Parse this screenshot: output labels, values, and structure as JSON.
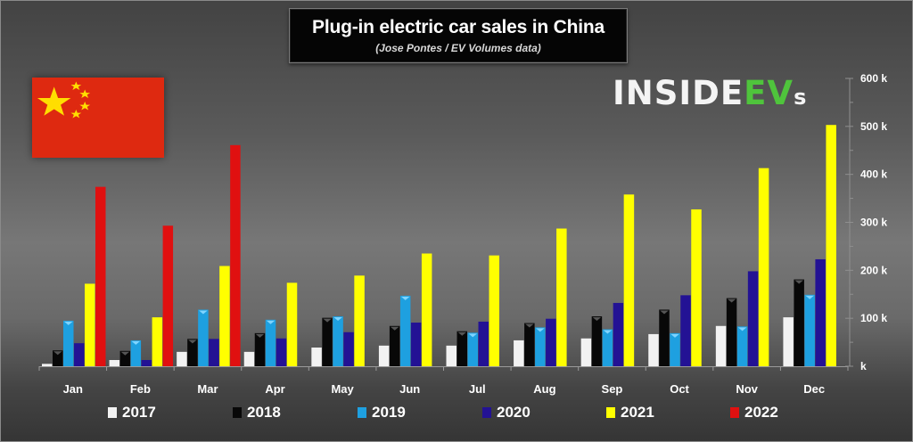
{
  "chart_data": {
    "type": "bar",
    "title": "Plug-in electric car sales in China",
    "subtitle": "(Jose Pontes / EV Volumes data)",
    "xlabel": "",
    "ylabel": "",
    "ylim": [
      0,
      600000
    ],
    "y_ticks": [
      0,
      100000,
      200000,
      300000,
      400000,
      500000,
      600000
    ],
    "y_tick_labels": [
      "k",
      "100 k",
      "200 k",
      "300 k",
      "400 k",
      "500 k",
      "600 k"
    ],
    "y_axis_position": "right",
    "grid": false,
    "legend_position": "bottom",
    "categories": [
      "Jan",
      "Feb",
      "Mar",
      "Apr",
      "May",
      "Jun",
      "Jul",
      "Aug",
      "Sep",
      "Oct",
      "Nov",
      "Dec"
    ],
    "series": [
      {
        "name": "2017",
        "color": "#f2f2f2",
        "values": [
          5000,
          13000,
          30000,
          30000,
          39000,
          43000,
          43000,
          54000,
          58000,
          67000,
          84000,
          102000
        ]
      },
      {
        "name": "2018",
        "color": "#080808",
        "values": [
          33000,
          32000,
          57000,
          69000,
          101000,
          84000,
          73000,
          90000,
          104000,
          118000,
          142000,
          181000
        ]
      },
      {
        "name": "2019",
        "color": "#1ea0e0",
        "values": [
          95000,
          54000,
          118000,
          97000,
          104000,
          147000,
          70000,
          81000,
          77000,
          69000,
          83000,
          149000
        ]
      },
      {
        "name": "2020",
        "color": "#231294",
        "values": [
          48000,
          13000,
          57000,
          58000,
          71000,
          91000,
          93000,
          99000,
          132000,
          148000,
          198000,
          223000
        ]
      },
      {
        "name": "2021",
        "color": "#ffff00",
        "values": [
          172000,
          102000,
          209000,
          174000,
          189000,
          235000,
          231000,
          287000,
          358000,
          327000,
          413000,
          503000
        ]
      },
      {
        "name": "2022",
        "color": "#e01010",
        "values": [
          374000,
          293000,
          461000,
          null,
          null,
          null,
          null,
          null,
          null,
          null,
          null,
          null
        ]
      }
    ]
  },
  "branding": {
    "logo_main": "INSIDE",
    "logo_ev": "EV",
    "logo_s": "s"
  },
  "flag": {
    "name": "China",
    "field_color": "#de2910",
    "star_color": "#ffde00"
  }
}
